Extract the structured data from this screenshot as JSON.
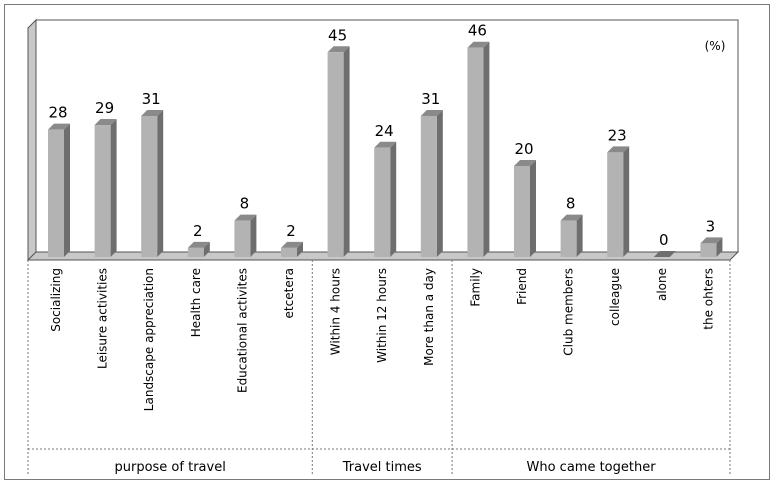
{
  "chart_data": {
    "type": "bar",
    "unit_label": "(%)",
    "ylim": [
      0,
      50
    ],
    "grid": false,
    "categories": [
      "Socializing",
      "Leisure activities",
      "Landscape appreciation",
      "Health care",
      "Educational activites",
      "etcetera",
      "Within 4 hours",
      "Within 12 hours",
      "More than a day",
      "Family",
      "Friend",
      "Club members",
      "colleague",
      "alone",
      "the ohters"
    ],
    "values": [
      28,
      29,
      31,
      2,
      8,
      2,
      45,
      24,
      31,
      46,
      20,
      8,
      23,
      0,
      3
    ],
    "groups": [
      {
        "label": "purpose of travel",
        "start": 0,
        "end": 5
      },
      {
        "label": "Travel times",
        "start": 6,
        "end": 8
      },
      {
        "label": "Who came together",
        "start": 9,
        "end": 14
      }
    ],
    "colors": {
      "bar_front": "#b3b3b3",
      "bar_side": "#6e6e6e",
      "bar_top": "#8a8a8a",
      "wall": "#c8c8c8"
    }
  }
}
